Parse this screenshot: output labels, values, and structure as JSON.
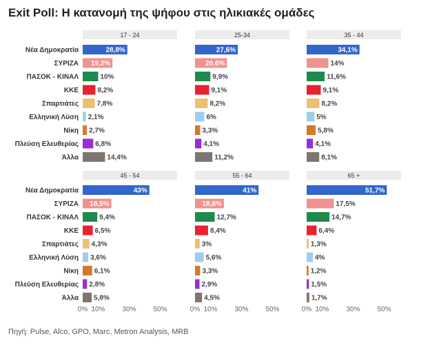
{
  "title": "Exit Poll: Η κατανομή της ψήφου στις ηλικιακές ομάδες",
  "source": "Πηγή: Pulse, Alco, GPO, Marc, Metron Analysis, MRB",
  "chart_data": {
    "type": "bar",
    "orientation": "horizontal",
    "categories": [
      "Νέα Δημοκρατία",
      "ΣΥΡΙΖΑ",
      "ΠΑΣΟΚ - ΚΙΝΑΛ",
      "ΚΚΕ",
      "Σπαρτιάτες",
      "Ελληνική Λύση",
      "Νίκη",
      "Πλεύση Ελευθερίας",
      "Άλλα"
    ],
    "colors": [
      "#3366cc",
      "#f0928f",
      "#1e8a4c",
      "#e8222f",
      "#ecbf72",
      "#9fcdee",
      "#d6782a",
      "#9b2ecf",
      "#7f7570"
    ],
    "xlim": [
      0,
      60
    ],
    "xticks": [
      {
        "value": 0,
        "label": "0%"
      },
      {
        "value": 10,
        "label": "10%"
      },
      {
        "value": 30,
        "label": "30%"
      },
      {
        "value": 50,
        "label": "50%"
      }
    ],
    "grid": false,
    "legend": "none",
    "panels": [
      {
        "title": "17 - 24",
        "values": [
          28.8,
          19.2,
          10,
          8.2,
          7.8,
          2.1,
          2.7,
          6.8,
          14.4
        ],
        "labels": [
          "28,8%",
          "19,2%",
          "10%",
          "8,2%",
          "7,8%",
          "2,1%",
          "2,7%",
          "6,8%",
          "14,4%"
        ]
      },
      {
        "title": "25-34",
        "values": [
          27.6,
          20.6,
          9.9,
          9.1,
          8.2,
          6,
          3.3,
          4.1,
          11.2
        ],
        "labels": [
          "27,6%",
          "20,6%",
          "9,9%",
          "9,1%",
          "8,2%",
          "6%",
          "3,3%",
          "4,1%",
          "11,2%"
        ]
      },
      {
        "title": "35 - 44",
        "values": [
          34.1,
          14,
          11.6,
          9.1,
          8.2,
          5,
          5.8,
          4.1,
          8.1
        ],
        "labels": [
          "34,1%",
          "14%",
          "11,6%",
          "9,1%",
          "8,2%",
          "5%",
          "5,8%",
          "4,1%",
          "8,1%"
        ]
      },
      {
        "title": "45 - 54",
        "values": [
          43,
          18.5,
          9.4,
          6.5,
          4.3,
          3.6,
          6.1,
          2.8,
          5.8
        ],
        "labels": [
          "43%",
          "18,5%",
          "9,4%",
          "6,5%",
          "4,3%",
          "3,6%",
          "6,1%",
          "2,8%",
          "5,8%"
        ]
      },
      {
        "title": "55 - 64",
        "values": [
          41,
          18.6,
          12.7,
          8.4,
          3,
          5.6,
          3.3,
          2.9,
          4.5
        ],
        "labels": [
          "41%",
          "18,6%",
          "12,7%",
          "8,4%",
          "3%",
          "5,6%",
          "3,3%",
          "2,9%",
          "4,5%"
        ]
      },
      {
        "title": "65 +",
        "values": [
          51.7,
          17.5,
          14.7,
          6.4,
          1.3,
          4,
          1.2,
          1.5,
          1.7
        ],
        "labels": [
          "51,7%",
          "17,5%",
          "14,7%",
          "6,4%",
          "1,3%",
          "4%",
          "1,2%",
          "1,5%",
          "1,7%"
        ]
      }
    ]
  }
}
